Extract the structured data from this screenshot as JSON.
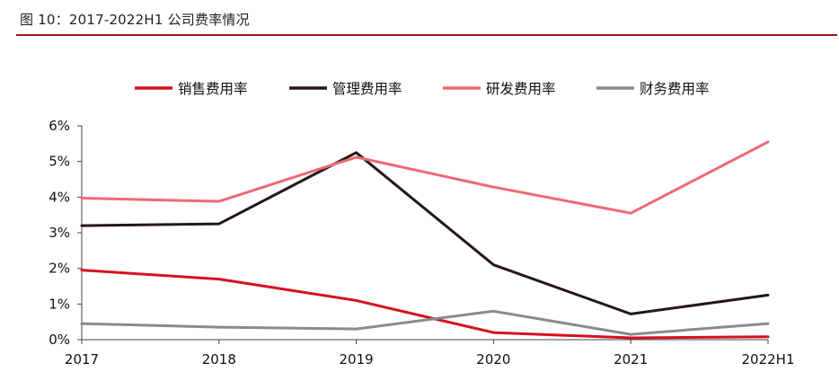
{
  "figure": {
    "title": "图 10：2017-2022H1 公司费率情况"
  },
  "colors": {
    "title_rule": "#a3141b",
    "axis": "#444444"
  },
  "chart_data": {
    "type": "line",
    "title": "",
    "xlabel": "",
    "ylabel": "",
    "categories": [
      "2017",
      "2018",
      "2019",
      "2020",
      "2021",
      "2022H1"
    ],
    "ylim": [
      0,
      6
    ],
    "yticks": [
      "0%",
      "1%",
      "2%",
      "3%",
      "4%",
      "5%",
      "6%"
    ],
    "grid": false,
    "legend_position": "top",
    "series": [
      {
        "name": "销售费用率",
        "color": "#d7101e",
        "values": [
          1.95,
          1.7,
          1.1,
          0.2,
          0.05,
          0.08
        ]
      },
      {
        "name": "管理费用率",
        "color": "#231816",
        "values": [
          3.2,
          3.25,
          5.25,
          2.1,
          0.72,
          1.25
        ]
      },
      {
        "name": "研发费用率",
        "color": "#f06874",
        "values": [
          3.97,
          3.88,
          5.12,
          4.28,
          3.55,
          5.55
        ]
      },
      {
        "name": "财务费用率",
        "color": "#8a8a8a",
        "values": [
          0.45,
          0.35,
          0.3,
          0.8,
          0.15,
          0.45
        ]
      }
    ]
  }
}
